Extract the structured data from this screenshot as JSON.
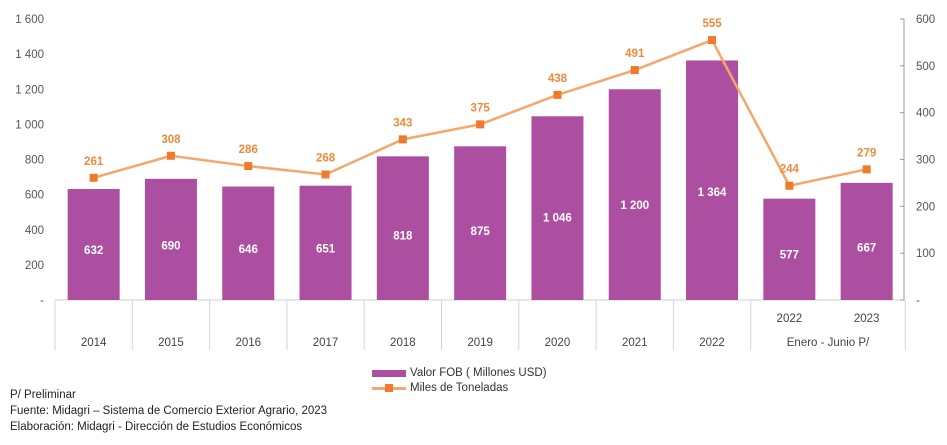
{
  "chart_data": {
    "type": "bar+line",
    "categories": [
      "2014",
      "2015",
      "2016",
      "2017",
      "2018",
      "2019",
      "2020",
      "2021",
      "2022",
      "2022",
      "2023"
    ],
    "category_group": {
      "label": "Enero - Junio P/",
      "applies_to": [
        "2022",
        "2023"
      ]
    },
    "series": [
      {
        "name": "Valor FOB ( Millones USD)",
        "type": "bar",
        "axis": "left",
        "color": "#ad4fa1",
        "values": [
          632,
          690,
          646,
          651,
          818,
          875,
          1046,
          1200,
          1364,
          577,
          667
        ],
        "labels": [
          "632",
          "690",
          "646",
          "651",
          "818",
          "875",
          "1 046",
          "1 200",
          "1 364",
          "577",
          "667"
        ]
      },
      {
        "name": "Miles de Toneladas",
        "type": "line",
        "axis": "right",
        "color": "#f5a66a",
        "marker_color": "#ee7a2a",
        "values": [
          261,
          308,
          286,
          268,
          343,
          375,
          438,
          491,
          555,
          244,
          279
        ],
        "labels": [
          "261",
          "308",
          "286",
          "268",
          "343",
          "375",
          "438",
          "491",
          "555",
          "244",
          "279"
        ]
      }
    ],
    "left_axis": {
      "ylim": [
        0,
        1600
      ],
      "ticks": [
        "-",
        "200",
        "400",
        "600",
        "800",
        "1 000",
        "1 200",
        "1 400",
        "1 600"
      ]
    },
    "right_axis": {
      "ylim": [
        0,
        600
      ],
      "ticks": [
        "-",
        "100",
        "200",
        "300",
        "400",
        "500",
        "600"
      ]
    },
    "legend": "bottom-center"
  },
  "notes": [
    "P/ Preliminar",
    "Fuente: Midagri – Sistema de Comercio Exterior Agrario, 2023",
    "Elaboración: Midagri - Dirección de Estudios Económicos"
  ]
}
